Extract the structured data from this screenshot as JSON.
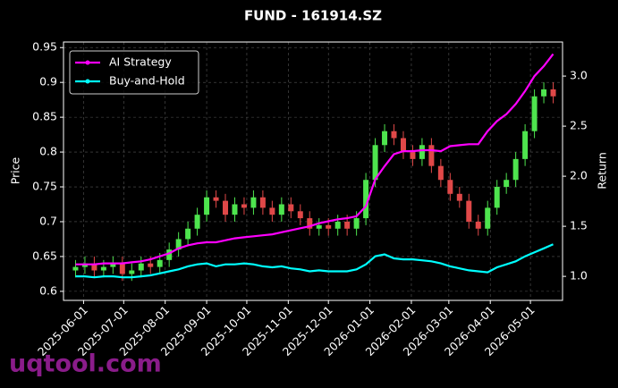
{
  "chart_data": {
    "type": "candlestick",
    "title": "FUND - 161914.SZ",
    "ylabel": "Price",
    "y2label": "Return",
    "watermark": "uqtool.com",
    "legend": "upper left",
    "grid": true,
    "up_color": "#4ee44e",
    "down_color": "#e04848",
    "x": [
      "2025-05-26",
      "2025-06-02",
      "2025-06-09",
      "2025-06-16",
      "2025-06-23",
      "2025-06-30",
      "2025-07-07",
      "2025-07-14",
      "2025-07-21",
      "2025-07-28",
      "2025-08-04",
      "2025-08-11",
      "2025-08-18",
      "2025-08-25",
      "2025-09-01",
      "2025-09-08",
      "2025-09-15",
      "2025-09-22",
      "2025-09-29",
      "2025-10-06",
      "2025-10-13",
      "2025-10-20",
      "2025-10-27",
      "2025-11-03",
      "2025-11-10",
      "2025-11-17",
      "2025-11-24",
      "2025-12-01",
      "2025-12-08",
      "2025-12-15",
      "2025-12-22",
      "2025-12-29",
      "2026-01-05",
      "2026-01-12",
      "2026-01-19",
      "2026-01-26",
      "2026-02-02",
      "2026-02-09",
      "2026-02-16",
      "2026-02-23",
      "2026-03-02",
      "2026-03-09",
      "2026-03-16",
      "2026-03-23",
      "2026-03-30",
      "2026-04-06",
      "2026-04-13",
      "2026-04-20",
      "2026-04-27",
      "2026-05-04",
      "2026-05-11",
      "2026-05-18"
    ],
    "open": [
      0.63,
      0.635,
      0.64,
      0.63,
      0.635,
      0.64,
      0.625,
      0.63,
      0.64,
      0.635,
      0.645,
      0.66,
      0.675,
      0.69,
      0.71,
      0.735,
      0.73,
      0.71,
      0.725,
      0.72,
      0.735,
      0.72,
      0.71,
      0.725,
      0.715,
      0.705,
      0.69,
      0.695,
      0.69,
      0.7,
      0.69,
      0.705,
      0.76,
      0.81,
      0.83,
      0.82,
      0.8,
      0.79,
      0.81,
      0.78,
      0.76,
      0.74,
      0.73,
      0.7,
      0.69,
      0.72,
      0.75,
      0.76,
      0.79,
      0.83,
      0.88,
      0.89
    ],
    "high": [
      0.645,
      0.65,
      0.65,
      0.645,
      0.65,
      0.65,
      0.64,
      0.65,
      0.65,
      0.655,
      0.67,
      0.685,
      0.7,
      0.72,
      0.745,
      0.745,
      0.74,
      0.735,
      0.735,
      0.745,
      0.745,
      0.73,
      0.735,
      0.735,
      0.725,
      0.715,
      0.705,
      0.705,
      0.71,
      0.71,
      0.715,
      0.77,
      0.82,
      0.84,
      0.84,
      0.83,
      0.81,
      0.82,
      0.82,
      0.79,
      0.77,
      0.75,
      0.74,
      0.71,
      0.73,
      0.76,
      0.77,
      0.8,
      0.84,
      0.89,
      0.9,
      0.9
    ],
    "low": [
      0.62,
      0.625,
      0.62,
      0.62,
      0.625,
      0.615,
      0.615,
      0.62,
      0.625,
      0.625,
      0.635,
      0.65,
      0.665,
      0.68,
      0.7,
      0.72,
      0.7,
      0.7,
      0.71,
      0.71,
      0.71,
      0.7,
      0.7,
      0.705,
      0.695,
      0.68,
      0.68,
      0.68,
      0.68,
      0.68,
      0.68,
      0.695,
      0.75,
      0.8,
      0.81,
      0.79,
      0.78,
      0.78,
      0.77,
      0.75,
      0.73,
      0.72,
      0.69,
      0.68,
      0.68,
      0.71,
      0.74,
      0.75,
      0.78,
      0.82,
      0.87,
      0.87
    ],
    "close": [
      0.635,
      0.64,
      0.63,
      0.635,
      0.64,
      0.625,
      0.63,
      0.64,
      0.635,
      0.645,
      0.66,
      0.675,
      0.69,
      0.71,
      0.735,
      0.73,
      0.71,
      0.725,
      0.72,
      0.735,
      0.72,
      0.71,
      0.725,
      0.715,
      0.705,
      0.69,
      0.695,
      0.69,
      0.7,
      0.69,
      0.705,
      0.76,
      0.81,
      0.83,
      0.82,
      0.8,
      0.79,
      0.81,
      0.78,
      0.76,
      0.74,
      0.73,
      0.7,
      0.69,
      0.72,
      0.75,
      0.76,
      0.79,
      0.83,
      0.88,
      0.89,
      0.88
    ],
    "series": [
      {
        "name": "AI Strategy",
        "color": "#ff00ff",
        "axis": "y2",
        "values": [
          1.12,
          1.12,
          1.12,
          1.13,
          1.13,
          1.13,
          1.14,
          1.15,
          1.17,
          1.2,
          1.23,
          1.28,
          1.31,
          1.33,
          1.34,
          1.34,
          1.36,
          1.38,
          1.39,
          1.4,
          1.41,
          1.42,
          1.44,
          1.46,
          1.48,
          1.5,
          1.53,
          1.55,
          1.57,
          1.58,
          1.6,
          1.7,
          1.97,
          2.1,
          2.22,
          2.25,
          2.25,
          2.26,
          2.26,
          2.25,
          2.3,
          2.31,
          2.32,
          2.32,
          2.45,
          2.55,
          2.62,
          2.72,
          2.85,
          3.0,
          3.1,
          3.22
        ]
      },
      {
        "name": "Buy-and-Hold",
        "color": "#00ffff",
        "axis": "y2",
        "values": [
          1.0,
          1.0,
          0.99,
          1.0,
          1.0,
          0.99,
          0.99,
          1.0,
          1.01,
          1.03,
          1.05,
          1.07,
          1.1,
          1.12,
          1.13,
          1.1,
          1.12,
          1.12,
          1.13,
          1.12,
          1.1,
          1.09,
          1.1,
          1.08,
          1.07,
          1.05,
          1.06,
          1.05,
          1.05,
          1.05,
          1.07,
          1.12,
          1.2,
          1.22,
          1.18,
          1.17,
          1.17,
          1.16,
          1.15,
          1.13,
          1.1,
          1.08,
          1.06,
          1.05,
          1.04,
          1.09,
          1.12,
          1.15,
          1.2,
          1.24,
          1.28,
          1.32
        ]
      }
    ],
    "xlim": [
      "2025-05-17",
      "2026-05-25"
    ],
    "xticks": [
      "2025-06-01",
      "2025-07-01",
      "2025-08-01",
      "2025-09-01",
      "2025-10-01",
      "2025-11-01",
      "2025-12-01",
      "2026-01-01",
      "2026-02-01",
      "2026-03-01",
      "2026-04-01",
      "2026-05-01"
    ],
    "ylim": [
      0.587,
      0.958
    ],
    "yticks": [
      0.6,
      0.65,
      0.7,
      0.75,
      0.8,
      0.85,
      0.9,
      0.95
    ],
    "y2lim": [
      0.76,
      3.34
    ],
    "y2ticks": [
      {
        "value": 1,
        "label": "1.0"
      },
      1.5,
      {
        "value": 2,
        "label": "2.0"
      },
      2.5,
      {
        "value": 3,
        "label": "3.0"
      }
    ]
  }
}
